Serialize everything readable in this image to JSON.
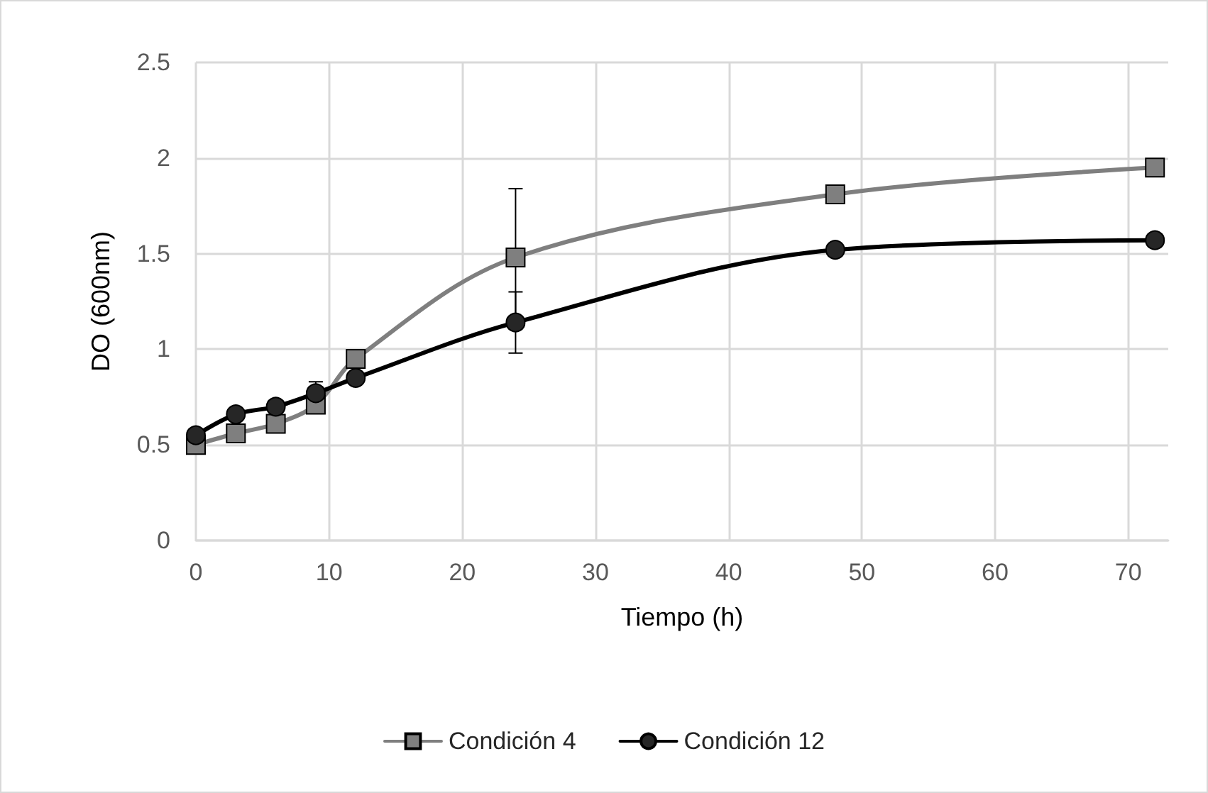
{
  "chart_data": {
    "type": "line",
    "xlabel": "Tiempo (h)",
    "ylabel": "DO (600nm)",
    "x": [
      0,
      3,
      6,
      9,
      12,
      24,
      48,
      72
    ],
    "series": [
      {
        "name": "Condición 4",
        "color": "#7f7f7f",
        "marker": "square",
        "values": [
          0.5,
          0.56,
          0.61,
          0.71,
          0.95,
          1.48,
          1.81,
          1.95
        ],
        "errors": [
          null,
          null,
          null,
          null,
          null,
          0.36,
          null,
          null
        ]
      },
      {
        "name": "Condición 12",
        "color": "#000000",
        "marker": "circle",
        "values": [
          0.55,
          0.66,
          0.7,
          0.77,
          0.85,
          1.14,
          1.52,
          1.57
        ],
        "errors": [
          null,
          0.03,
          null,
          0.06,
          null,
          0.16,
          null,
          null
        ]
      }
    ],
    "xlim": [
      0,
      73
    ],
    "xticks": [
      0,
      10,
      20,
      30,
      40,
      50,
      60,
      70
    ],
    "ylim": [
      0,
      2.5
    ],
    "yticks": [
      0,
      0.5,
      1,
      1.5,
      2,
      2.5
    ],
    "grid": true,
    "legend": "bottom"
  }
}
